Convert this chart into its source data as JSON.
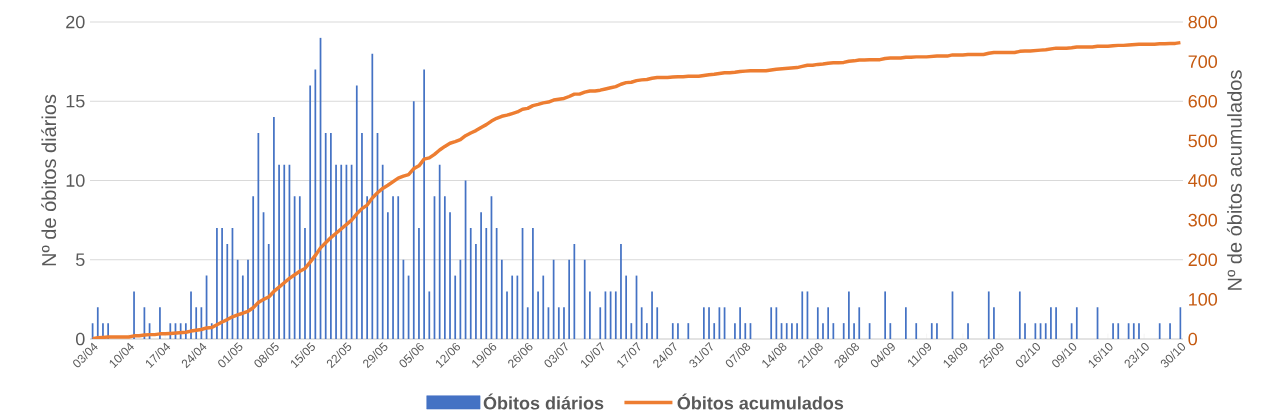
{
  "chart_data": {
    "type": "bar",
    "ylabel": "Nº de óbitos diários",
    "y2label": "Nº de óbitos acumulados",
    "categories": [
      "03/04",
      null,
      null,
      null,
      null,
      null,
      null,
      "10/04",
      null,
      null,
      null,
      null,
      null,
      null,
      "17/04",
      null,
      null,
      null,
      null,
      null,
      null,
      "24/04",
      null,
      null,
      null,
      null,
      null,
      null,
      "01/05",
      null,
      null,
      null,
      null,
      null,
      null,
      "08/05",
      null,
      null,
      null,
      null,
      null,
      null,
      "15/05",
      null,
      null,
      null,
      null,
      null,
      null,
      "22/05",
      null,
      null,
      null,
      null,
      null,
      null,
      "29/05",
      null,
      null,
      null,
      null,
      null,
      null,
      "05/06",
      null,
      null,
      null,
      null,
      null,
      null,
      "12/06",
      null,
      null,
      null,
      null,
      null,
      null,
      "19/06",
      null,
      null,
      null,
      null,
      null,
      null,
      "26/06",
      null,
      null,
      null,
      null,
      null,
      null,
      "03/07",
      null,
      null,
      null,
      null,
      null,
      null,
      "10/07",
      null,
      null,
      null,
      null,
      null,
      null,
      "17/07",
      null,
      null,
      null,
      null,
      null,
      null,
      "24/07",
      null,
      null,
      null,
      null,
      null,
      null,
      "31/07",
      null,
      null,
      null,
      null,
      null,
      null,
      "07/08",
      null,
      null,
      null,
      null,
      null,
      null,
      "14/08",
      null,
      null,
      null,
      null,
      null,
      null,
      "21/08",
      null,
      null,
      null,
      null,
      null,
      null,
      "28/08",
      null,
      null,
      null,
      null,
      null,
      null,
      "04/09",
      null,
      null,
      null,
      null,
      null,
      null,
      "11/09",
      null,
      null,
      null,
      null,
      null,
      null,
      "18/09",
      null,
      null,
      null,
      null,
      null,
      null,
      "25/09",
      null,
      null,
      null,
      null,
      null,
      null,
      "02/10",
      null,
      null,
      null,
      null,
      null,
      null,
      "09/10",
      null,
      null,
      null,
      null,
      null,
      null,
      "16/10",
      null,
      null,
      null,
      null,
      null,
      null,
      "23/10",
      null,
      null,
      null,
      null,
      null,
      null,
      "30/10"
    ],
    "series": [
      {
        "name": "Óbitos diários",
        "color": "#4472c4",
        "values": [
          1,
          2,
          1,
          1,
          0,
          0,
          0,
          0,
          3,
          0,
          2,
          1,
          0,
          2,
          0,
          1,
          1,
          1,
          1,
          3,
          2,
          2,
          4,
          1,
          7,
          7,
          6,
          7,
          5,
          4,
          5,
          9,
          13,
          8,
          6,
          14,
          11,
          11,
          11,
          9,
          9,
          7,
          16,
          17,
          19,
          13,
          13,
          11,
          11,
          11,
          11,
          16,
          13,
          9,
          18,
          13,
          11,
          8,
          9,
          9,
          5,
          4,
          15,
          7,
          17,
          3,
          9,
          11,
          9,
          8,
          4,
          5,
          10,
          7,
          6,
          8,
          7,
          9,
          7,
          5,
          3,
          4,
          4,
          7,
          2,
          7,
          3,
          4,
          2,
          5,
          2,
          2,
          5,
          6,
          0,
          5,
          3,
          0,
          2,
          3,
          3,
          3,
          6,
          4,
          1,
          4,
          2,
          1,
          3,
          2,
          0,
          0,
          1,
          1,
          0,
          1,
          0,
          0,
          2,
          2,
          1,
          2,
          2,
          0,
          1,
          2,
          1,
          1,
          0,
          0,
          0,
          2,
          2,
          1,
          1,
          1,
          1,
          3,
          3,
          0,
          2,
          1,
          2,
          1,
          0,
          1,
          3,
          1,
          2,
          0,
          1,
          0,
          0,
          3,
          1,
          0,
          0,
          2,
          0,
          1,
          0,
          0,
          1,
          1,
          0,
          0,
          3,
          0,
          0,
          1,
          0,
          0,
          0,
          3,
          2,
          0,
          0,
          0,
          0,
          3,
          1,
          0,
          1,
          1,
          1,
          2,
          2,
          0,
          0,
          1,
          2,
          0,
          0,
          0,
          2,
          0,
          0,
          1,
          1,
          0,
          1,
          1,
          1,
          0,
          0,
          0,
          1,
          0,
          1,
          0,
          2
        ]
      },
      {
        "name": "Óbitos acumulados",
        "type": "line",
        "axis": "y2",
        "color": "#ed7d31",
        "values": [
          1,
          3,
          4,
          5,
          5,
          5,
          5,
          5,
          8,
          8,
          10,
          11,
          11,
          13,
          13,
          14,
          15,
          16,
          17,
          20,
          22,
          24,
          28,
          29,
          36,
          43,
          49,
          56,
          61,
          65,
          70,
          79,
          92,
          100,
          106,
          120,
          131,
          142,
          153,
          162,
          171,
          178,
          194,
          211,
          230,
          243,
          256,
          267,
          278,
          289,
          300,
          316,
          329,
          338,
          356,
          369,
          380,
          388,
          397,
          406,
          411,
          415,
          430,
          437,
          454,
          457,
          466,
          477,
          486,
          494,
          498,
          503,
          513,
          520,
          526,
          534,
          541,
          550,
          557,
          562,
          565,
          569,
          573,
          580,
          582,
          589,
          592,
          596,
          598,
          603,
          605,
          607,
          612,
          618,
          618,
          623,
          626,
          626,
          628,
          631,
          634,
          637,
          643,
          647,
          648,
          652,
          654,
          655,
          658,
          660,
          660,
          660,
          661,
          662,
          662,
          663,
          663,
          663,
          665,
          667,
          668,
          670,
          672,
          672,
          673,
          675,
          676,
          677,
          677,
          677,
          677,
          679,
          681,
          682,
          683,
          684,
          685,
          688,
          691,
          691,
          693,
          694,
          696,
          697,
          697,
          698,
          701,
          702,
          704,
          704,
          705,
          705,
          705,
          708,
          709,
          709,
          709,
          711,
          711,
          712,
          712,
          712,
          713,
          714,
          714,
          714,
          717,
          717,
          717,
          718,
          718,
          718,
          718,
          721,
          723,
          723,
          723,
          723,
          723,
          726,
          727,
          727,
          728,
          729,
          730,
          732,
          734,
          734,
          734,
          735,
          737,
          737,
          737,
          737,
          739,
          739,
          739,
          740,
          741,
          741,
          742,
          743,
          744,
          744,
          744,
          744,
          745,
          745,
          746,
          746,
          748
        ]
      }
    ],
    "ylim": [
      0,
      20
    ],
    "yticks": [
      0,
      5,
      10,
      15,
      20
    ],
    "y2lim": [
      0,
      800
    ],
    "y2ticks": [
      0,
      100,
      200,
      300,
      400,
      500,
      600,
      700,
      800
    ],
    "grid": "y",
    "legend": "bottom",
    "marker": "none"
  }
}
